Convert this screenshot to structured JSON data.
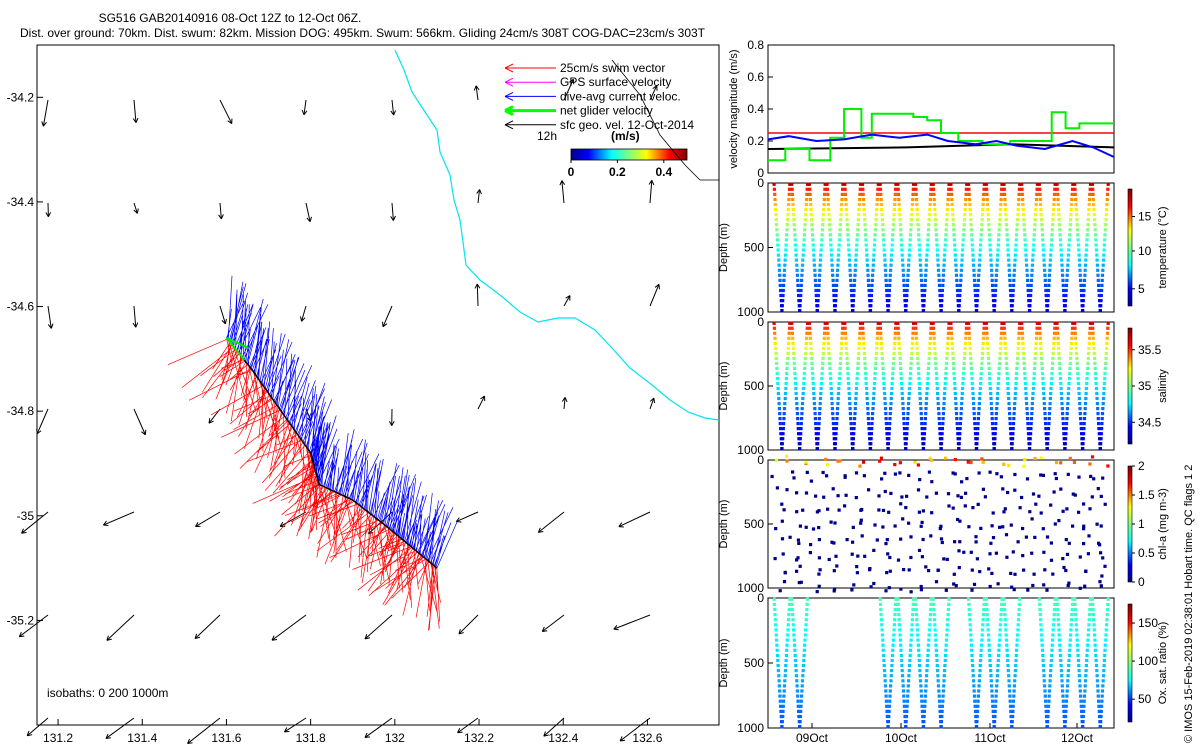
{
  "chart_data": {
    "title": "SG516 GAB20140916 08-Oct 12Z to 12-Oct 06Z.",
    "subtitle": "Dist. over ground: 70km. Dist. swum: 82km. Mission DOG: 495km. Swum: 566km. Gliding 24cm/s 308T COG-DAC=23cm/s 303T",
    "map": {
      "type": "vector-map",
      "xlim": [
        131.15,
        132.77
      ],
      "ylim": [
        -35.4,
        -34.1
      ],
      "xticks": [
        "131.2",
        "131.4",
        "131.6",
        "131.8",
        "132",
        "132.2",
        "132.4",
        "132.6"
      ],
      "yticks": [
        "-34.2",
        "-34.4",
        "-34.6",
        "-34.8",
        "-35",
        "-35.2"
      ],
      "isobath_note": "isobaths: 0   200   1000m",
      "scale_label": "12h",
      "colorbar": {
        "unit": "(m/s)",
        "ticks": [
          "0",
          "0.2",
          "0.4"
        ],
        "range": [
          0,
          0.5
        ]
      },
      "legend": [
        {
          "label": "25cm/s swim vector",
          "color": "#ff0000"
        },
        {
          "label": "GPS surface velocity",
          "color": "#ff00ff"
        },
        {
          "label": "dive-avg current veloc.",
          "color": "#0000ff"
        },
        {
          "label": "net glider velocity",
          "color": "#00ff00"
        },
        {
          "label": "sfc geo. vel. 12-Oct-2014",
          "color": "#000000"
        }
      ],
      "track": [
        [
          131.6,
          -34.66
        ],
        [
          131.66,
          -34.72
        ],
        [
          131.73,
          -34.8
        ],
        [
          131.8,
          -34.88
        ],
        [
          131.82,
          -34.94
        ],
        [
          131.9,
          -34.97
        ],
        [
          131.98,
          -35.02
        ],
        [
          132.04,
          -35.06
        ],
        [
          132.1,
          -35.1
        ]
      ]
    },
    "velocity_panel": {
      "type": "line",
      "ylabel": "velocity magnitude (m/s)",
      "ylim": [
        0,
        0.8
      ],
      "yticks": [
        "0",
        "0.2",
        "0.4",
        "0.6",
        "0.8"
      ],
      "series": [
        {
          "color": "#ff0000",
          "x": [
            0,
            1
          ],
          "y": [
            0.25,
            0.25
          ]
        },
        {
          "color": "#000000",
          "x": [
            0,
            0.4,
            0.7,
            1
          ],
          "y": [
            0.15,
            0.16,
            0.18,
            0.16
          ]
        },
        {
          "color": "#00ee00",
          "x": [
            0,
            0.05,
            0.05,
            0.12,
            0.12,
            0.18,
            0.18,
            0.22,
            0.22,
            0.27,
            0.27,
            0.3,
            0.3,
            0.42,
            0.42,
            0.46,
            0.46,
            0.5,
            0.5,
            0.55,
            0.55,
            0.62,
            0.62,
            0.7,
            0.7,
            0.82,
            0.82,
            0.86,
            0.86,
            0.9,
            0.9,
            1
          ],
          "y": [
            0.08,
            0.08,
            0.15,
            0.15,
            0.08,
            0.08,
            0.22,
            0.22,
            0.4,
            0.4,
            0.22,
            0.22,
            0.37,
            0.37,
            0.35,
            0.35,
            0.33,
            0.33,
            0.25,
            0.25,
            0.2,
            0.2,
            0.18,
            0.18,
            0.2,
            0.2,
            0.38,
            0.38,
            0.28,
            0.28,
            0.31,
            0.31
          ]
        },
        {
          "color": "#0000ff",
          "x": [
            0,
            0.06,
            0.14,
            0.22,
            0.3,
            0.38,
            0.46,
            0.52,
            0.6,
            0.66,
            0.72,
            0.8,
            0.88,
            0.94,
            1
          ],
          "y": [
            0.21,
            0.23,
            0.2,
            0.21,
            0.24,
            0.22,
            0.24,
            0.2,
            0.18,
            0.2,
            0.17,
            0.15,
            0.2,
            0.16,
            0.1
          ]
        }
      ]
    },
    "profiles": [
      {
        "label": "temperature (°C)",
        "cticks": [
          "5",
          "10",
          "15"
        ],
        "range": [
          2,
          19
        ],
        "cb_at": [
          4.5,
          10,
          15
        ]
      },
      {
        "label": "salinity",
        "cticks": [
          "34.5",
          "35",
          "35.5"
        ],
        "range": [
          34.2,
          35.8
        ],
        "cb_at": [
          34.5,
          35,
          35.5
        ]
      },
      {
        "label": "chl-a (mg m-3)",
        "cticks": [
          "0",
          "0.5",
          "1",
          "1.5",
          "2"
        ],
        "range": [
          0,
          2
        ],
        "cb_at": [
          0,
          0.5,
          1,
          1.5,
          2
        ]
      },
      {
        "label": "Ox. sat. ratio (%)",
        "cticks": [
          "50",
          "100",
          "150"
        ],
        "range": [
          20,
          175
        ],
        "cb_at": [
          50,
          100,
          150
        ]
      }
    ],
    "depth_label": "Depth (m)",
    "depth_ticks": [
      "0",
      "500",
      "1000"
    ],
    "time_ticks": [
      "09Oct",
      "10Oct",
      "11Oct",
      "12Oct"
    ],
    "side_text": "© IMOS 15-Feb-2019 02:38:01 Hobart time. QC flags 1  2"
  }
}
